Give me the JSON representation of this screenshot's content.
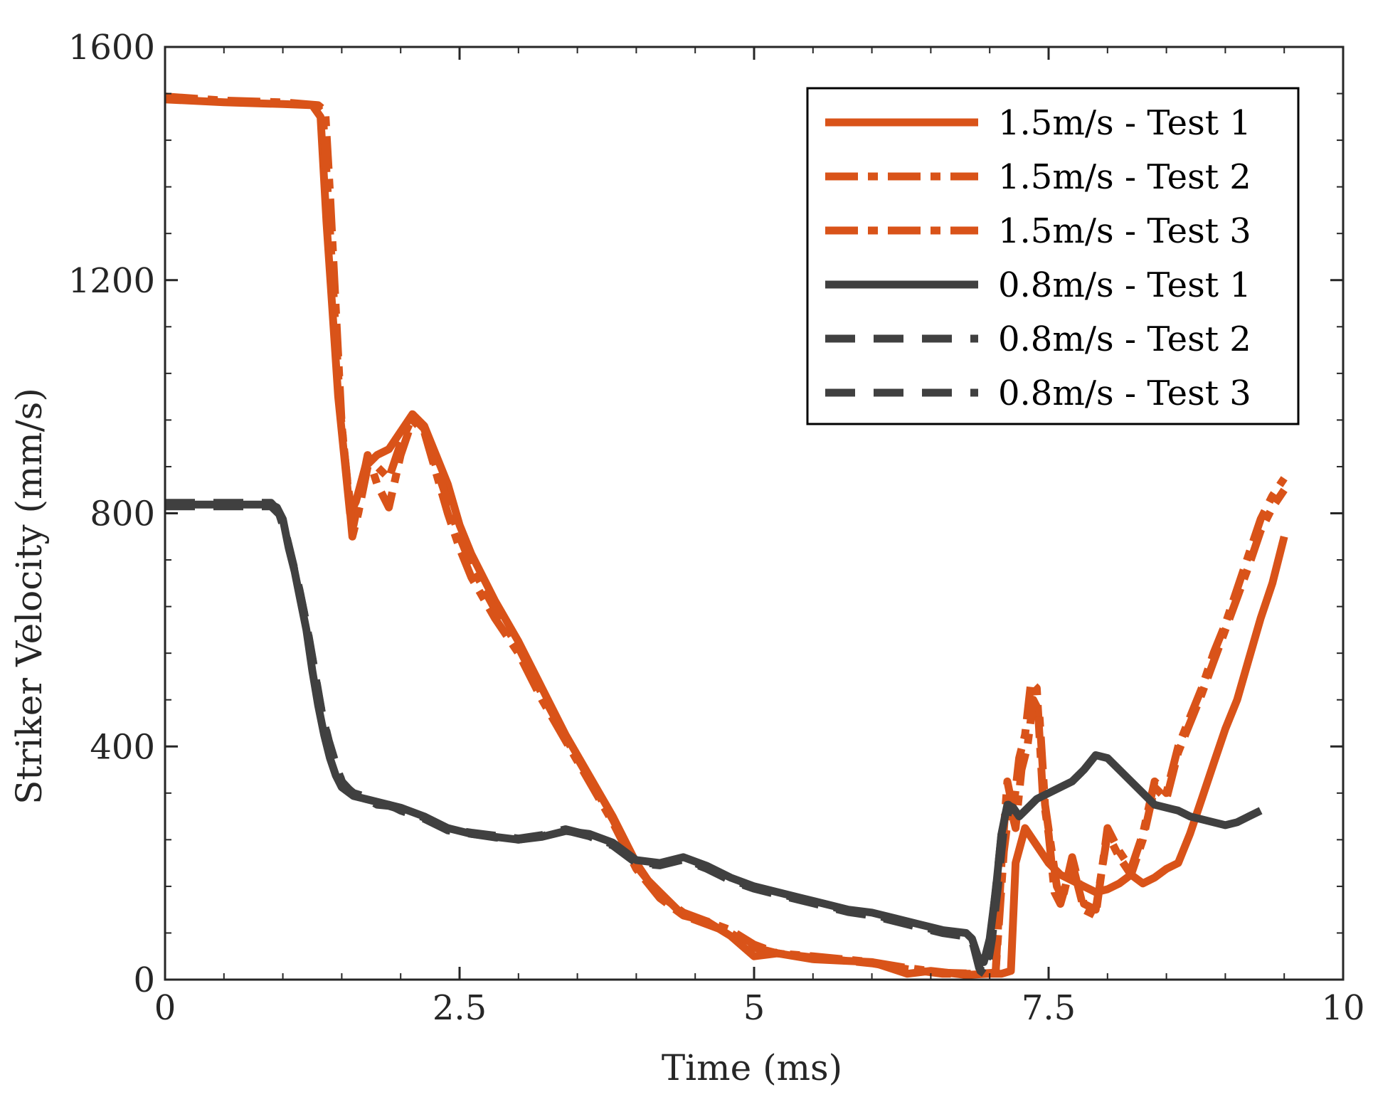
{
  "chart_data": {
    "type": "line",
    "title": "",
    "xlabel": "Time (ms)",
    "ylabel": "Striker Velocity (mm/s)",
    "xlim": [
      0,
      10
    ],
    "ylim": [
      0,
      1600
    ],
    "xticks": [
      0,
      2.5,
      5,
      7.5,
      10
    ],
    "xtick_labels": [
      "0",
      "2.5",
      "5",
      "7.5",
      "10"
    ],
    "yticks": [
      0,
      400,
      800,
      1200,
      1600
    ],
    "ytick_labels": [
      "0",
      "400",
      "800",
      "1200",
      "1600"
    ],
    "grid": false,
    "legend_position": "top-right",
    "colors": {
      "orange": "#D95319",
      "dark": "#404040",
      "axis": "#262626"
    },
    "series": [
      {
        "name": "1.5m/s - Test 1",
        "color": "#D95319",
        "dash": "solid",
        "x": [
          0,
          0.5,
          1.0,
          1.25,
          1.32,
          1.37,
          1.42,
          1.47,
          1.52,
          1.57,
          1.62,
          1.7,
          1.8,
          1.9,
          2.0,
          2.1,
          2.2,
          2.3,
          2.4,
          2.5,
          2.6,
          2.8,
          3.0,
          3.2,
          3.4,
          3.6,
          3.8,
          4.0,
          4.1,
          4.2,
          4.4,
          4.6,
          4.8,
          5.0,
          5.2,
          5.5,
          6.0,
          6.3,
          6.5,
          6.8,
          7.0,
          7.1,
          7.18,
          7.22,
          7.3,
          7.4,
          7.5,
          7.6,
          7.7,
          7.8,
          7.9,
          8.0,
          8.1,
          8.2,
          8.3,
          8.4,
          8.5,
          8.6,
          8.7,
          8.8,
          8.9,
          9.0,
          9.1,
          9.2,
          9.3,
          9.4,
          9.5
        ],
        "y": [
          1510,
          1505,
          1502,
          1500,
          1480,
          1300,
          1150,
          1000,
          900,
          800,
          820,
          880,
          900,
          910,
          940,
          970,
          950,
          900,
          850,
          780,
          730,
          650,
          580,
          500,
          420,
          350,
          280,
          200,
          170,
          150,
          110,
          100,
          75,
          40,
          45,
          35,
          30,
          10,
          15,
          8,
          10,
          10,
          15,
          200,
          260,
          230,
          200,
          180,
          170,
          160,
          150,
          155,
          165,
          180,
          165,
          175,
          190,
          200,
          250,
          310,
          370,
          430,
          480,
          550,
          620,
          680,
          760
        ]
      },
      {
        "name": "1.5m/s - Test 2",
        "color": "#D95319",
        "dash": "dashdot",
        "x": [
          0,
          0.5,
          1.0,
          1.3,
          1.36,
          1.4,
          1.45,
          1.5,
          1.55,
          1.6,
          1.65,
          1.72,
          1.8,
          1.9,
          2.0,
          2.1,
          2.2,
          2.3,
          2.4,
          2.5,
          2.6,
          2.8,
          3.0,
          3.2,
          3.4,
          3.6,
          3.8,
          4.0,
          4.2,
          4.4,
          4.6,
          4.8,
          5.0,
          5.2,
          5.5,
          6.0,
          6.3,
          6.6,
          6.9,
          7.05,
          7.1,
          7.15,
          7.2,
          7.25,
          7.3,
          7.35,
          7.4,
          7.45,
          7.5,
          7.55,
          7.6,
          7.7,
          7.8,
          7.9,
          8.0,
          8.1,
          8.2,
          8.3,
          8.4,
          8.5,
          8.6,
          8.7,
          8.8,
          8.9,
          9.0,
          9.1,
          9.2,
          9.3,
          9.4,
          9.5
        ],
        "y": [
          1515,
          1508,
          1505,
          1500,
          1490,
          1350,
          1150,
          950,
          850,
          780,
          830,
          900,
          850,
          810,
          900,
          960,
          940,
          870,
          800,
          740,
          690,
          620,
          560,
          480,
          410,
          340,
          270,
          190,
          140,
          110,
          95,
          80,
          55,
          45,
          40,
          30,
          20,
          12,
          10,
          12,
          200,
          340,
          290,
          380,
          420,
          510,
          500,
          320,
          250,
          150,
          130,
          200,
          120,
          110,
          260,
          220,
          190,
          250,
          340,
          320,
          400,
          450,
          500,
          560,
          610,
          670,
          730,
          790,
          830,
          860
        ]
      },
      {
        "name": "1.5m/s - Test 3",
        "color": "#D95319",
        "dash": "dashdot",
        "x": [
          0,
          0.5,
          1.0,
          1.28,
          1.34,
          1.39,
          1.44,
          1.49,
          1.54,
          1.59,
          1.64,
          1.72,
          1.8,
          1.9,
          2.0,
          2.1,
          2.2,
          2.3,
          2.4,
          2.5,
          2.6,
          2.8,
          3.0,
          3.2,
          3.4,
          3.6,
          3.8,
          4.0,
          4.2,
          4.4,
          4.6,
          4.8,
          5.0,
          5.2,
          5.5,
          6.0,
          6.3,
          6.6,
          6.9,
          7.05,
          7.12,
          7.17,
          7.22,
          7.27,
          7.32,
          7.37,
          7.42,
          7.47,
          7.52,
          7.57,
          7.62,
          7.7,
          7.8,
          7.9,
          8.0,
          8.1,
          8.2,
          8.3,
          8.4,
          8.5,
          8.6,
          8.7,
          8.8,
          8.9,
          9.0,
          9.1,
          9.2,
          9.3,
          9.4,
          9.5
        ],
        "y": [
          1512,
          1506,
          1503,
          1500,
          1485,
          1320,
          1140,
          970,
          870,
          760,
          800,
          880,
          880,
          860,
          920,
          965,
          945,
          880,
          820,
          760,
          710,
          635,
          570,
          490,
          415,
          345,
          275,
          195,
          145,
          115,
          100,
          85,
          60,
          45,
          38,
          28,
          18,
          10,
          10,
          12,
          220,
          300,
          260,
          360,
          400,
          480,
          460,
          300,
          230,
          160,
          140,
          210,
          130,
          120,
          250,
          210,
          180,
          240,
          330,
          310,
          390,
          440,
          490,
          545,
          600,
          655,
          710,
          770,
          810,
          840
        ]
      },
      {
        "name": "0.8m/s - Test 1",
        "color": "#404040",
        "dash": "solid",
        "x": [
          0,
          0.3,
          0.6,
          0.9,
          0.95,
          1.0,
          1.05,
          1.1,
          1.15,
          1.2,
          1.25,
          1.3,
          1.35,
          1.4,
          1.45,
          1.5,
          1.6,
          1.7,
          1.8,
          1.9,
          2.0,
          2.2,
          2.4,
          2.6,
          2.8,
          3.0,
          3.2,
          3.4,
          3.6,
          3.8,
          4.0,
          4.2,
          4.4,
          4.6,
          4.8,
          5.0,
          5.2,
          5.4,
          5.6,
          5.8,
          6.0,
          6.2,
          6.4,
          6.6,
          6.8,
          6.85,
          6.9,
          6.95,
          7.0,
          7.05,
          7.1,
          7.15,
          7.2,
          7.25,
          7.3,
          7.4,
          7.5,
          7.6,
          7.7,
          7.8,
          7.9,
          8.0,
          8.1,
          8.2,
          8.3,
          8.4,
          8.5,
          8.6,
          8.7,
          8.8,
          8.9,
          9.0,
          9.1,
          9.2,
          9.3
        ],
        "y": [
          815,
          815,
          815,
          815,
          810,
          790,
          740,
          700,
          650,
          600,
          530,
          470,
          420,
          380,
          350,
          330,
          315,
          310,
          305,
          300,
          295,
          280,
          260,
          250,
          245,
          240,
          245,
          255,
          250,
          235,
          205,
          200,
          210,
          195,
          175,
          160,
          150,
          140,
          130,
          120,
          115,
          105,
          95,
          85,
          80,
          70,
          40,
          30,
          70,
          150,
          250,
          300,
          295,
          280,
          290,
          310,
          320,
          330,
          340,
          360,
          385,
          380,
          360,
          340,
          320,
          300,
          295,
          290,
          280,
          275,
          270,
          265,
          270,
          280,
          290
        ]
      },
      {
        "name": "0.8m/s - Test 2",
        "color": "#404040",
        "dash": "dashed",
        "x": [
          0,
          0.3,
          0.6,
          0.9,
          0.96,
          1.02,
          1.08,
          1.14,
          1.2,
          1.26,
          1.32,
          1.38,
          1.44,
          1.5,
          1.6,
          1.7,
          1.8,
          1.9,
          2.0,
          2.2,
          2.4,
          2.6,
          2.8,
          3.0,
          3.2,
          3.4,
          3.6,
          3.8,
          4.0,
          4.2,
          4.4,
          4.6,
          4.8,
          5.0,
          5.2,
          5.4,
          5.6,
          5.8,
          6.0,
          6.2,
          6.4,
          6.6,
          6.8,
          6.86,
          6.91,
          6.96,
          7.01,
          7.06,
          7.11,
          7.16,
          7.2
        ],
        "y": [
          818,
          818,
          818,
          818,
          805,
          770,
          720,
          670,
          610,
          540,
          470,
          415,
          375,
          340,
          318,
          312,
          300,
          298,
          292,
          278,
          258,
          252,
          247,
          242,
          248,
          258,
          248,
          232,
          202,
          198,
          208,
          192,
          172,
          158,
          148,
          138,
          128,
          118,
          112,
          102,
          92,
          82,
          76,
          60,
          20,
          10,
          80,
          170,
          270,
          300,
          290
        ]
      },
      {
        "name": "0.8m/s - Test 3",
        "color": "#404040",
        "dash": "dashed",
        "x": [
          0,
          0.3,
          0.6,
          0.9,
          0.97,
          1.03,
          1.09,
          1.15,
          1.21,
          1.27,
          1.33,
          1.39,
          1.45,
          1.51,
          1.6,
          1.7,
          1.8,
          1.9,
          2.0,
          2.2,
          2.4,
          2.6,
          2.8,
          3.0,
          3.2,
          3.4,
          3.6,
          3.8,
          4.0,
          4.2,
          4.4,
          4.6,
          4.8,
          5.0,
          5.2,
          5.4,
          5.6,
          5.8,
          6.0,
          6.2,
          6.4,
          6.6,
          6.8,
          6.87,
          6.92,
          6.97,
          7.02,
          7.07,
          7.12,
          7.17,
          7.2
        ],
        "y": [
          812,
          812,
          812,
          812,
          798,
          760,
          710,
          660,
          600,
          530,
          460,
          410,
          370,
          335,
          320,
          314,
          302,
          300,
          290,
          276,
          256,
          250,
          244,
          240,
          246,
          256,
          246,
          230,
          200,
          196,
          206,
          190,
          170,
          156,
          146,
          136,
          126,
          116,
          110,
          100,
          90,
          80,
          74,
          55,
          15,
          8,
          70,
          160,
          260,
          295,
          285
        ]
      }
    ]
  }
}
